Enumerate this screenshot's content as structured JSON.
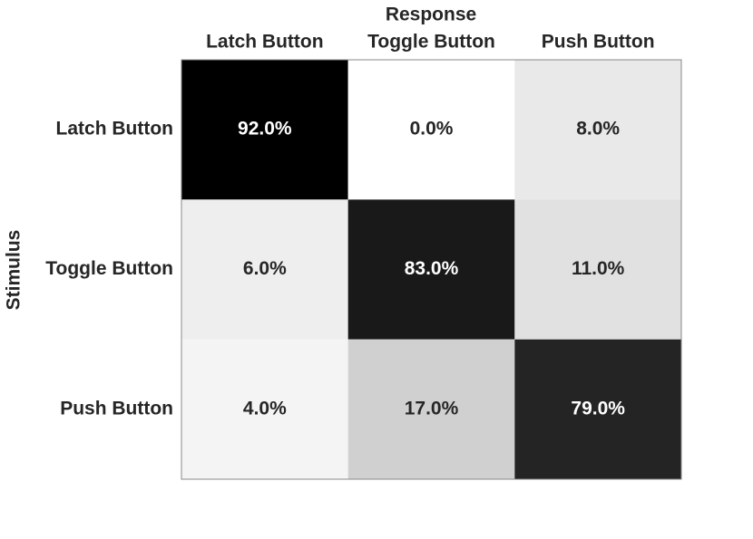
{
  "chart_data": {
    "type": "heatmap",
    "x_label": "Response",
    "y_label": "Stimulus",
    "x_categories": [
      "Latch Button",
      "Toggle Button",
      "Push Button"
    ],
    "y_categories": [
      "Latch Button",
      "Toggle Button",
      "Push Button"
    ],
    "values": [
      [
        92,
        0,
        8
      ],
      [
        6,
        83,
        11
      ],
      [
        4,
        17,
        79
      ]
    ],
    "value_labels": [
      [
        "92.0%",
        "0.0%",
        "8.0%"
      ],
      [
        "6.0%",
        "83.0%",
        "11.0%"
      ],
      [
        "4.0%",
        "17.0%",
        "79.0%"
      ]
    ],
    "colormap": "gray_r"
  }
}
